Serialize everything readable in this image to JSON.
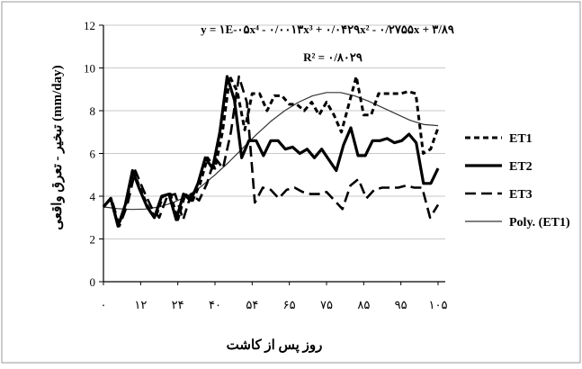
{
  "chart_data": {
    "type": "line",
    "xlabel": "روز پس از کاشت",
    "ylabel": "تبخیر - تعرق واقعی (mm/day)",
    "ylim": [
      0,
      12
    ],
    "yticks": [
      "0",
      "2",
      "4",
      "6",
      "8",
      "10",
      "12"
    ],
    "xtick_labels": [
      "۰",
      "۱۲",
      "۲۴",
      "۴۰",
      "۵۴",
      "۶۵",
      "۷۵",
      "۸۵",
      "۹۵",
      "۱۰۵"
    ],
    "trendline_equation": "y = ۱E-۰۵x⁴ - ۰/۰۰۱۳x³ + ۰/۰۴۲۹x² - ۰/۲۷۵۵x + ۳/۸۹",
    "r_squared": "R² = ۰/۸۰۲۹",
    "grid": "horizontal",
    "legend_position": "right",
    "series": [
      {
        "name": "ET1",
        "style": "short-dash",
        "color": "#000000",
        "values": [
          3.5,
          3.9,
          2.6,
          3.6,
          5.2,
          4.3,
          3.5,
          3.0,
          4.0,
          4.1,
          2.9,
          4.1,
          3.8,
          4.6,
          5.8,
          5.3,
          7.0,
          9.6,
          8.9,
          7.1,
          8.8,
          8.8,
          8.0,
          8.7,
          8.7,
          8.3,
          8.3,
          8.0,
          8.4,
          7.8,
          8.4,
          7.8,
          7.0,
          8.3,
          9.6,
          7.8,
          7.8,
          8.8,
          8.8,
          8.8,
          8.8,
          8.9,
          8.8,
          6.0,
          6.2,
          7.2
        ]
      },
      {
        "name": "ET2",
        "style": "solid-thick",
        "color": "#000000",
        "values": [
          3.5,
          3.9,
          2.6,
          3.6,
          5.2,
          4.3,
          3.5,
          3.0,
          4.0,
          4.1,
          2.9,
          4.1,
          3.8,
          4.6,
          5.8,
          5.3,
          7.0,
          9.6,
          8.5,
          5.8,
          6.6,
          6.6,
          5.9,
          6.6,
          6.6,
          6.2,
          6.3,
          6.0,
          6.2,
          5.8,
          6.2,
          5.7,
          5.2,
          6.4,
          7.2,
          5.9,
          5.9,
          6.6,
          6.6,
          6.7,
          6.5,
          6.6,
          6.9,
          6.5,
          4.6,
          4.6,
          5.3
        ]
      },
      {
        "name": "ET3",
        "style": "long-dash",
        "color": "#000000",
        "values": [
          3.5,
          3.9,
          2.6,
          3.6,
          5.2,
          4.3,
          3.5,
          3.0,
          4.0,
          4.1,
          2.9,
          4.1,
          3.8,
          4.6,
          5.8,
          5.3,
          7.0,
          9.6,
          8.4,
          3.7,
          4.4,
          4.3,
          3.9,
          4.3,
          4.4,
          4.2,
          4.1,
          4.1,
          4.2,
          3.8,
          3.4,
          4.5,
          4.8,
          3.9,
          4.3,
          4.4,
          4.4,
          4.4,
          4.5,
          4.4,
          4.4,
          3.0,
          3.6
        ]
      },
      {
        "name": "Poly. (ET1)",
        "style": "thin-solid",
        "color": "#333333",
        "values": [
          3.5,
          3.42,
          3.38,
          3.4,
          3.5,
          3.7,
          4.0,
          4.45,
          5.0,
          5.6,
          6.25,
          6.9,
          7.5,
          8.0,
          8.4,
          8.7,
          8.85,
          8.85,
          8.7,
          8.45,
          8.15,
          7.85,
          7.55,
          7.35,
          7.3
        ]
      }
    ]
  }
}
